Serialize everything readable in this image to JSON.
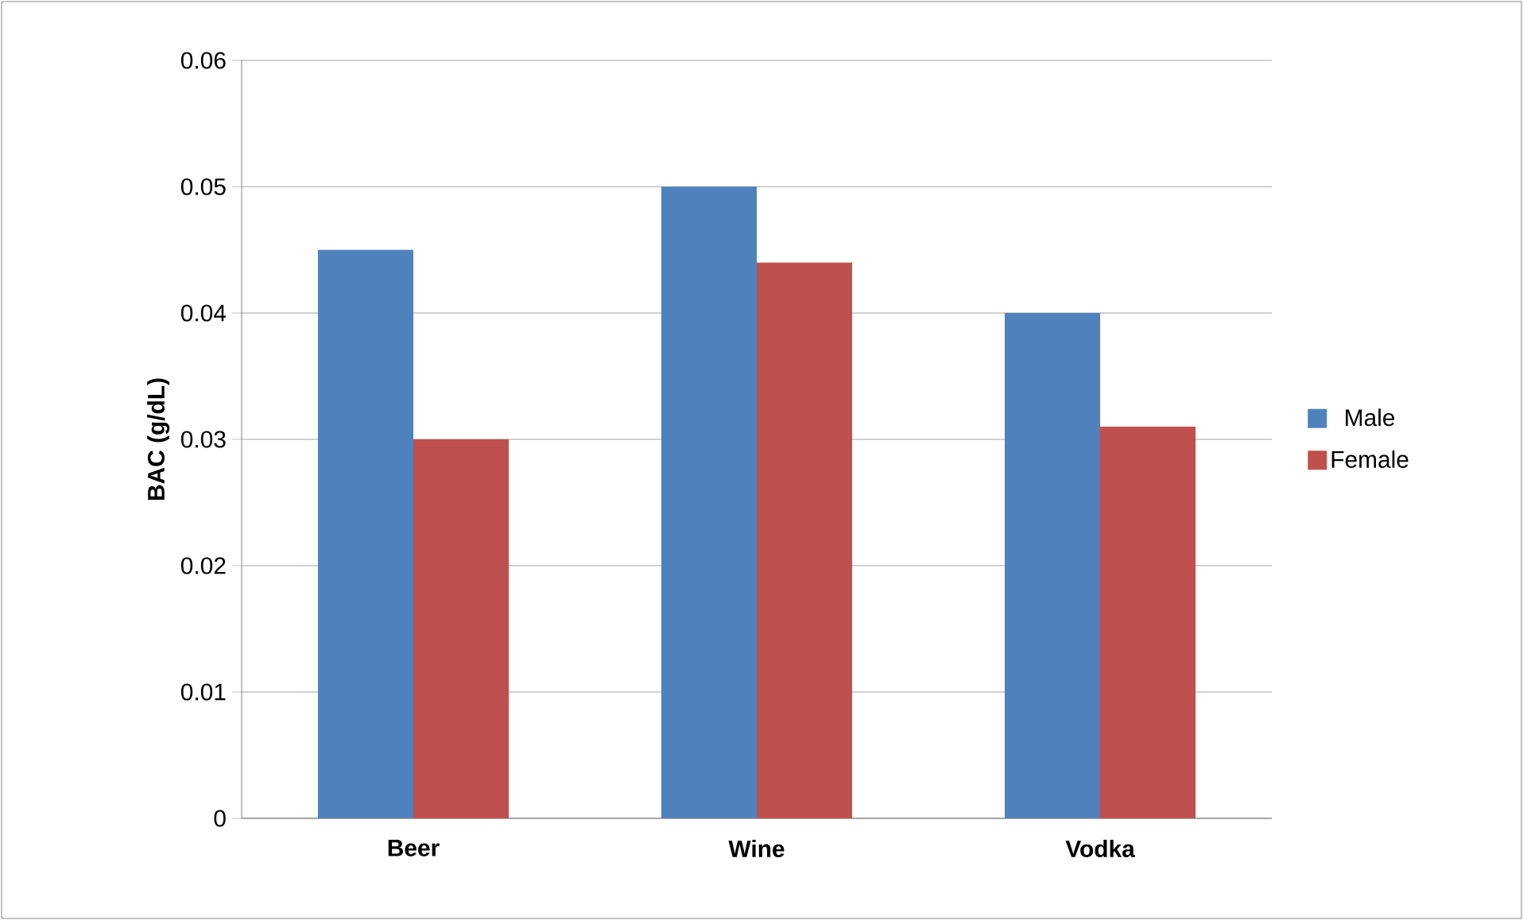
{
  "chart_data": {
    "type": "bar",
    "ylabel": "BAC (g/dL)",
    "categories": [
      "Beer",
      "Wine",
      "Vodka"
    ],
    "series": [
      {
        "name": "Male",
        "color": "#4f81bd",
        "values": [
          0.045,
          0.05,
          0.04
        ]
      },
      {
        "name": "Female",
        "color": "#c0504d",
        "values": [
          0.03,
          0.044,
          0.031
        ]
      }
    ],
    "ylim": [
      0,
      0.06
    ],
    "yticks": [
      0,
      0.01,
      0.02,
      0.03,
      0.04,
      0.05,
      0.06
    ],
    "grid": "y",
    "legend": "right"
  }
}
